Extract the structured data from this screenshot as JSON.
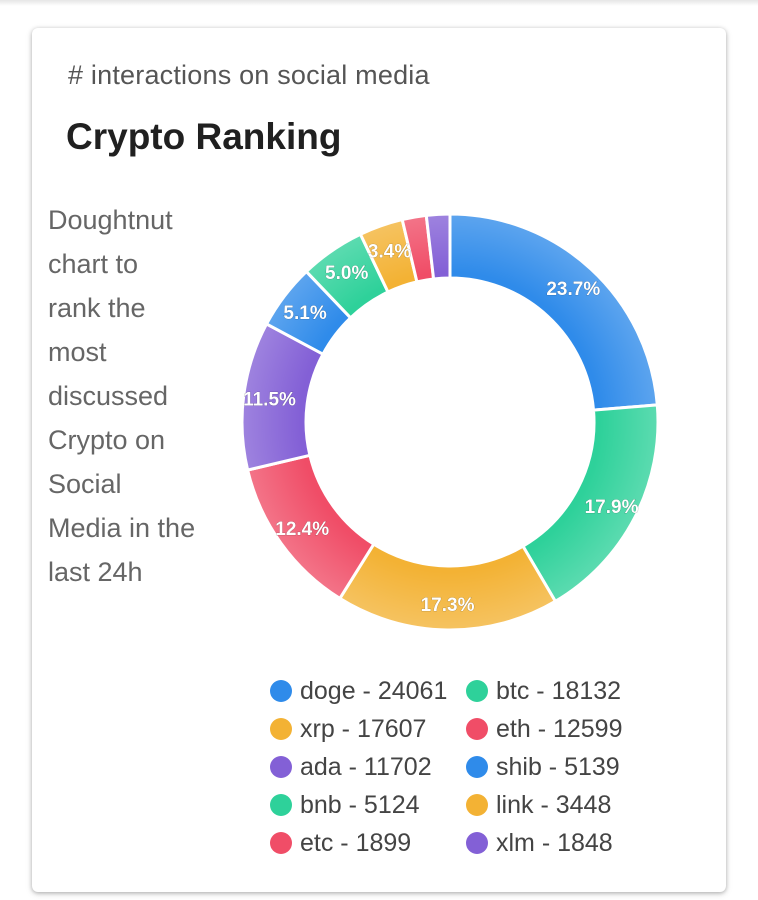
{
  "card": {
    "subtitle": "# interactions on social media",
    "title": "Crypto Ranking",
    "description": "Doughtnut chart to rank the most discussed Crypto on Social Media in the last 24h"
  },
  "chart_data": {
    "type": "pie",
    "variant": "doughnut",
    "legend_position": "bottom",
    "slices": [
      {
        "name": "doge",
        "value": 24061,
        "percent_label": "23.7%",
        "color": "#2F8BEA"
      },
      {
        "name": "btc",
        "value": 18132,
        "percent_label": "17.9%",
        "color": "#2ED19A"
      },
      {
        "name": "xrp",
        "value": 17607,
        "percent_label": "17.3%",
        "color": "#F3B234"
      },
      {
        "name": "eth",
        "value": 12599,
        "percent_label": "12.4%",
        "color": "#F04D67"
      },
      {
        "name": "ada",
        "value": 11702,
        "percent_label": "11.5%",
        "color": "#8360D6"
      },
      {
        "name": "shib",
        "value": 5139,
        "percent_label": "5.1%",
        "color": "#2F8BEA"
      },
      {
        "name": "bnb",
        "value": 5124,
        "percent_label": "5.0%",
        "color": "#2ED19A"
      },
      {
        "name": "link",
        "value": 3448,
        "percent_label": "3.4%",
        "color": "#F3B234"
      },
      {
        "name": "etc",
        "value": 1899,
        "percent_label": "",
        "color": "#F04D67"
      },
      {
        "name": "xlm",
        "value": 1848,
        "percent_label": "",
        "color": "#8360D6"
      }
    ],
    "legend_items": [
      {
        "label": "doge - 24061",
        "color": "#2F8BEA"
      },
      {
        "label": "btc - 18132",
        "color": "#2ED19A"
      },
      {
        "label": "xrp - 17607",
        "color": "#F3B234"
      },
      {
        "label": "eth - 12599",
        "color": "#F04D67"
      },
      {
        "label": "ada - 11702",
        "color": "#8360D6"
      },
      {
        "label": "shib - 5139",
        "color": "#2F8BEA"
      },
      {
        "label": "bnb - 5124",
        "color": "#2ED19A"
      },
      {
        "label": "link - 3448",
        "color": "#F3B234"
      },
      {
        "label": "etc - 1899",
        "color": "#F04D67"
      },
      {
        "label": "xlm - 1848",
        "color": "#8360D6"
      }
    ]
  }
}
